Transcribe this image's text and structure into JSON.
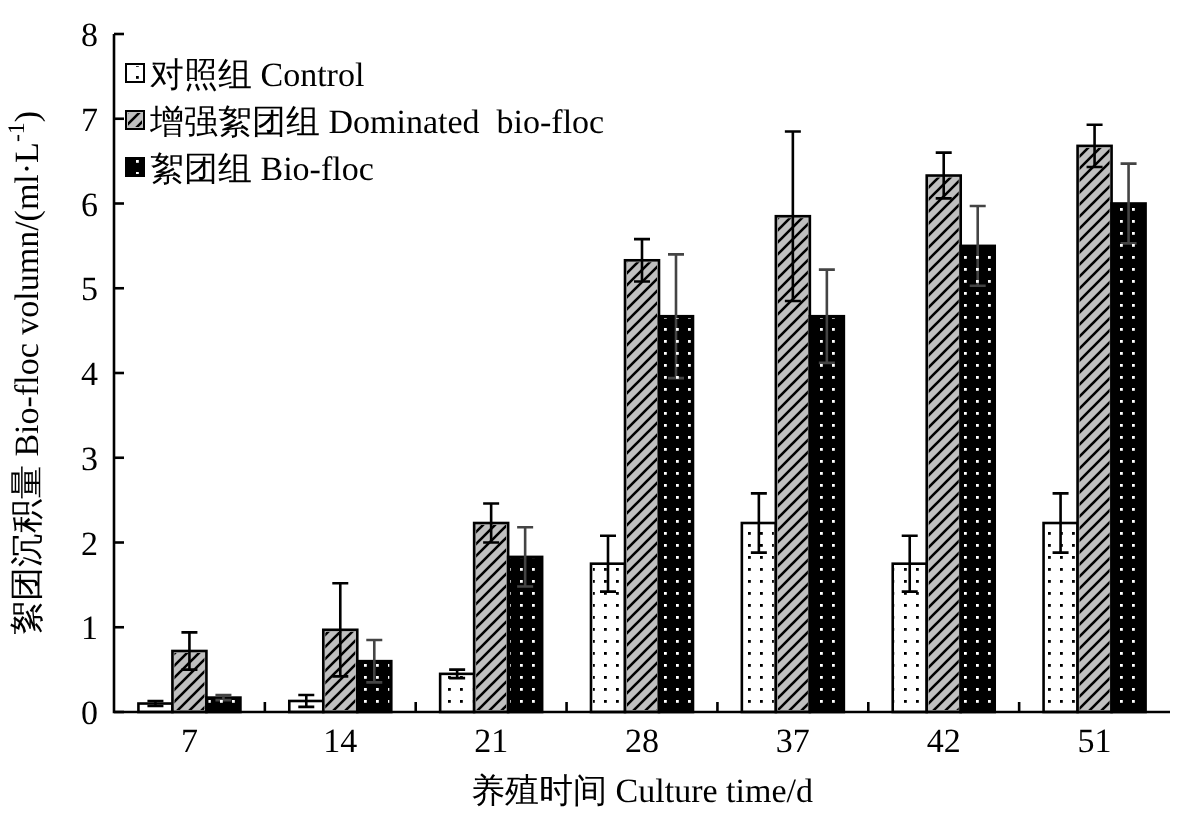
{
  "chart_data": {
    "type": "bar",
    "xlabel": "养殖时间 Culture time/d",
    "ylabel": "絮团沉积量 Bio-floc volumn/(ml·L$^{-1}$)",
    "categories": [
      "7",
      "14",
      "21",
      "28",
      "37",
      "42",
      "51"
    ],
    "series": [
      {
        "name": "对照组 Control",
        "color": "#ffffff",
        "values": [
          0.1,
          0.13,
          0.45,
          1.75,
          2.23,
          1.75,
          2.23
        ],
        "errors": [
          0.03,
          0.07,
          0.05,
          0.33,
          0.35,
          0.33,
          0.35
        ]
      },
      {
        "name": "增强絮团组 Dominated  bio-floc",
        "color": "#bfbfbf",
        "values": [
          0.72,
          0.97,
          2.23,
          5.33,
          5.85,
          6.33,
          6.68
        ],
        "errors": [
          0.22,
          0.55,
          0.23,
          0.25,
          1.0,
          0.27,
          0.25
        ]
      },
      {
        "name": "絮团组 Bio-floc",
        "color": "#000000",
        "values": [
          0.17,
          0.6,
          1.83,
          4.67,
          4.67,
          5.5,
          6.0
        ],
        "errors": [
          0.03,
          0.25,
          0.35,
          0.73,
          0.55,
          0.47,
          0.47
        ]
      }
    ],
    "ylim": [
      0,
      8
    ],
    "yticks": [
      0,
      1,
      2,
      3,
      4,
      5,
      6,
      7,
      8
    ],
    "legend": "top left",
    "grid": false
  }
}
